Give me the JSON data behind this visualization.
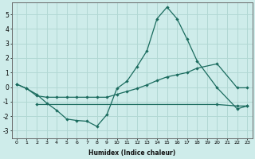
{
  "xlabel": "Humidex (Indice chaleur)",
  "background_color": "#ceecea",
  "grid_color": "#b2d8d4",
  "line_color": "#1a6b5e",
  "xlim": [
    -0.5,
    23.5
  ],
  "ylim": [
    -3.5,
    5.8
  ],
  "yticks": [
    -3,
    -2,
    -1,
    0,
    1,
    2,
    3,
    4,
    5
  ],
  "xticks": [
    0,
    1,
    2,
    3,
    4,
    5,
    6,
    7,
    8,
    9,
    10,
    11,
    12,
    13,
    14,
    15,
    16,
    17,
    18,
    19,
    20,
    21,
    22,
    23
  ],
  "line1_x": [
    0,
    1,
    2,
    3,
    4,
    5,
    6,
    7,
    8,
    9,
    10,
    11,
    12,
    13,
    14,
    15,
    16,
    17,
    18,
    20,
    22,
    23
  ],
  "line1_y": [
    0.2,
    -0.1,
    -0.5,
    -1.1,
    -1.6,
    -2.2,
    -2.3,
    -2.35,
    -2.7,
    -1.9,
    -0.1,
    0.4,
    1.4,
    2.5,
    4.7,
    5.5,
    4.7,
    3.3,
    1.8,
    -0.05,
    -1.5,
    -1.3
  ],
  "line2_x": [
    0,
    1,
    2,
    3,
    4,
    5,
    6,
    7,
    8,
    9,
    10,
    11,
    12,
    13,
    14,
    15,
    16,
    17,
    18,
    20,
    22,
    23
  ],
  "line2_y": [
    0.2,
    -0.1,
    -0.6,
    -0.7,
    -0.7,
    -0.7,
    -0.7,
    -0.7,
    -0.7,
    -0.7,
    -0.5,
    -0.3,
    -0.1,
    0.15,
    0.45,
    0.7,
    0.85,
    1.0,
    1.3,
    1.6,
    -0.05,
    -0.05
  ],
  "line3_x": [
    2,
    20,
    22,
    23
  ],
  "line3_y": [
    -1.2,
    -1.2,
    -1.3,
    -1.3
  ]
}
